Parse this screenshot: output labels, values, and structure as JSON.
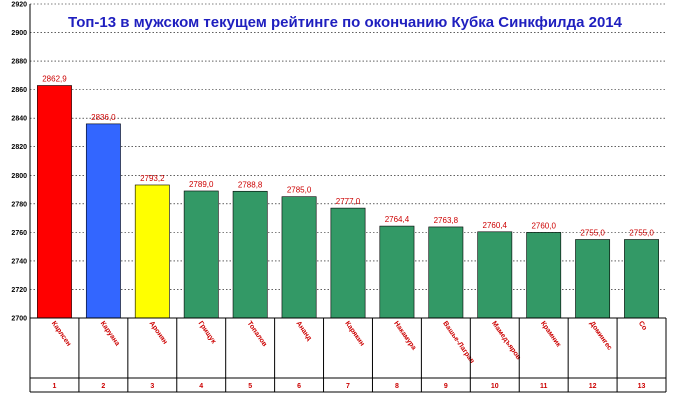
{
  "chart_data": {
    "type": "bar",
    "title": "Топ-13 в мужском текущем рейтинге по окончанию Кубка Синкфилда 2014",
    "xlabel": "",
    "ylabel": "",
    "ylim": [
      2700,
      2920
    ],
    "yticks": [
      2700,
      2720,
      2740,
      2760,
      2780,
      2800,
      2820,
      2840,
      2860,
      2880,
      2900,
      2920
    ],
    "grid": true,
    "categories": [
      "Карлсен",
      "Каруана",
      "Аронян",
      "Грищук",
      "Топалов",
      "Ананд",
      "Карякин",
      "Накамура",
      "Вашье-Лаграв",
      "Мамедъяров",
      "Крамник",
      "Домингес",
      "Со"
    ],
    "ranks": [
      "1",
      "2",
      "3",
      "4",
      "5",
      "6",
      "7",
      "8",
      "9",
      "10",
      "11",
      "12",
      "13"
    ],
    "values": [
      2862.9,
      2836.0,
      2793.2,
      2789.0,
      2788.8,
      2785.0,
      2777.0,
      2764.4,
      2763.8,
      2760.4,
      2760.0,
      2755.0,
      2755.0
    ],
    "value_labels": [
      "2862,9",
      "2836,0",
      "2793,2",
      "2789,0",
      "2788,8",
      "2785,0",
      "2777,0",
      "2764,4",
      "2763,8",
      "2760,4",
      "2760,0",
      "2755,0",
      "2755,0"
    ],
    "colors": [
      "#ff0000",
      "#3366ff",
      "#ffff00",
      "#339966",
      "#339966",
      "#339966",
      "#339966",
      "#339966",
      "#339966",
      "#339966",
      "#339966",
      "#339966",
      "#339966"
    ]
  }
}
